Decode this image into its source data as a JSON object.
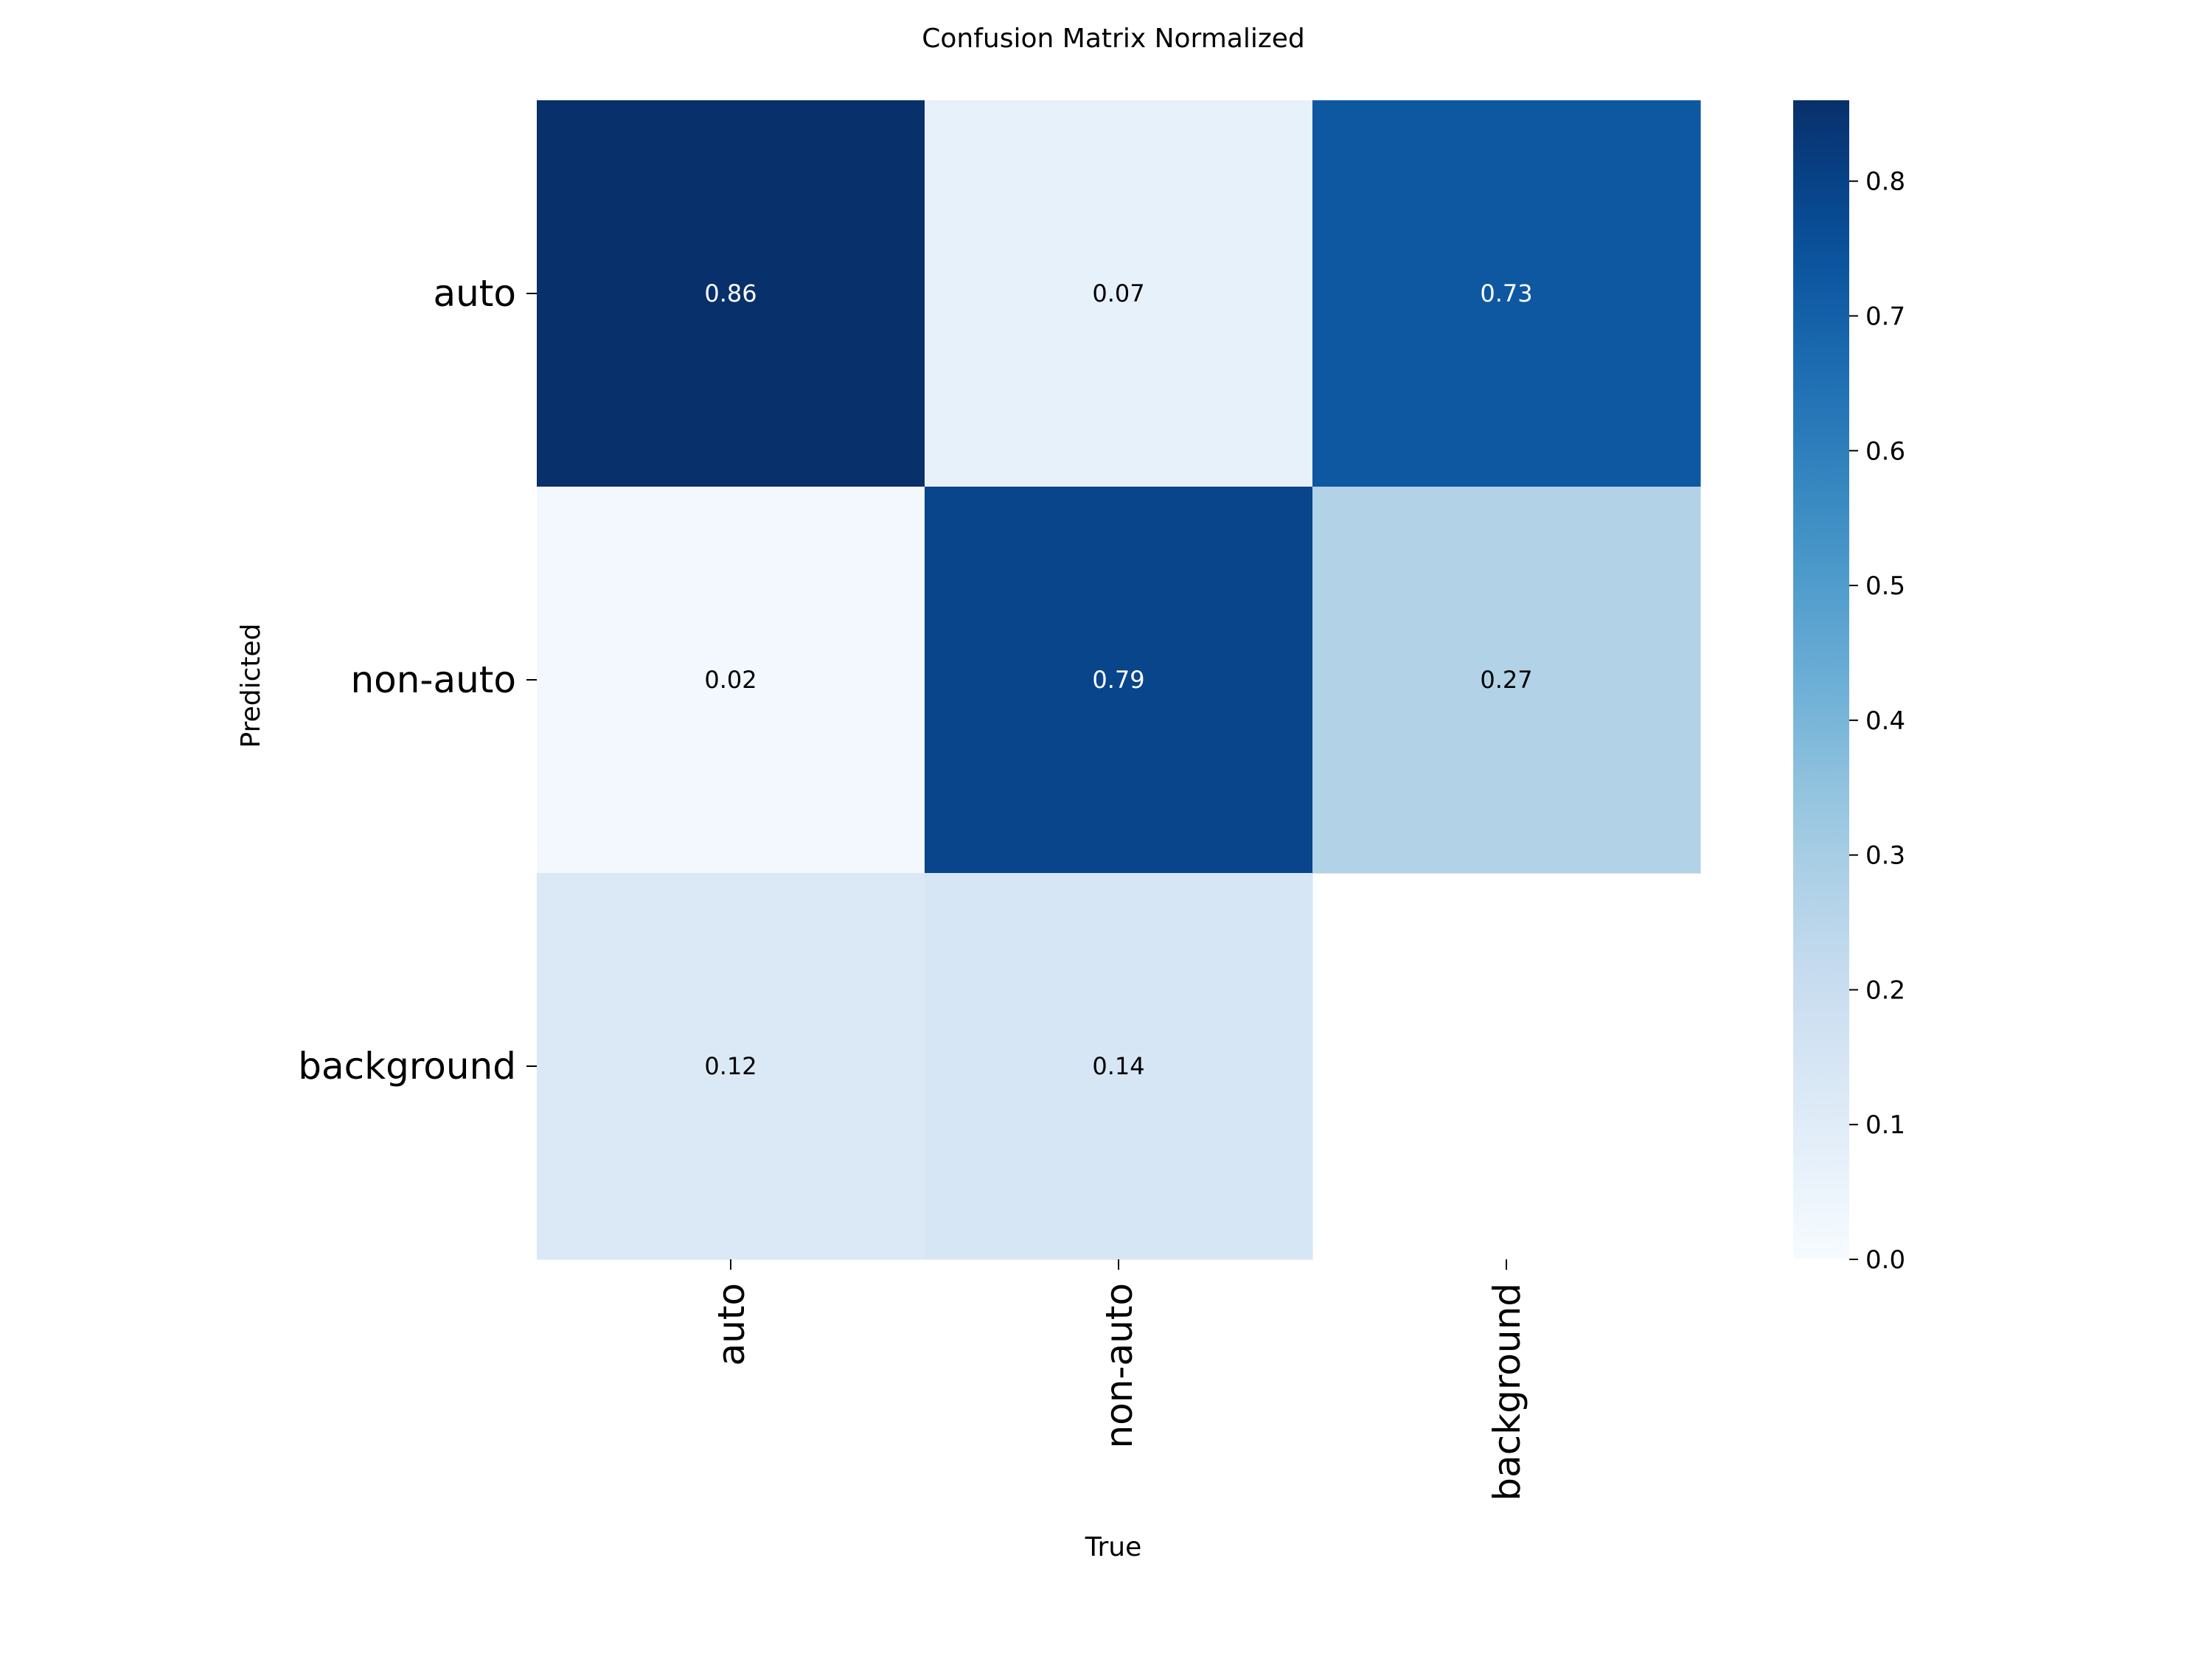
{
  "chart_data": {
    "type": "heatmap",
    "title": "Confusion Matrix Normalized",
    "xlabel": "True",
    "ylabel": "Predicted",
    "x_categories": [
      "auto",
      "non-auto",
      "background"
    ],
    "y_categories": [
      "auto",
      "non-auto",
      "background"
    ],
    "values": [
      [
        0.86,
        0.07,
        0.73
      ],
      [
        0.02,
        0.79,
        0.27
      ],
      [
        0.12,
        0.14,
        null
      ]
    ],
    "value_labels": [
      [
        "0.86",
        "0.07",
        "0.73"
      ],
      [
        "0.02",
        "0.79",
        "0.27"
      ],
      [
        "0.12",
        "0.14",
        ""
      ]
    ],
    "colormap": "Blues",
    "color_range": [
      0.0,
      0.86
    ],
    "colorbar_ticks": [
      "0.0",
      "0.1",
      "0.2",
      "0.3",
      "0.4",
      "0.5",
      "0.6",
      "0.7",
      "0.8"
    ],
    "colorbar_tick_values": [
      0.0,
      0.1,
      0.2,
      0.3,
      0.4,
      0.5,
      0.6,
      0.7,
      0.8
    ],
    "grid": false,
    "colorbar_position": "right"
  }
}
